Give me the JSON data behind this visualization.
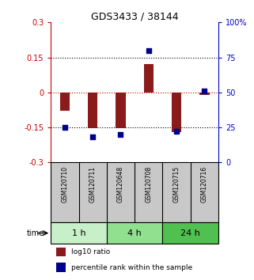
{
  "title": "GDS3433 / 38144",
  "samples": [
    "GSM120710",
    "GSM120711",
    "GSM120648",
    "GSM120708",
    "GSM120715",
    "GSM120716"
  ],
  "log10_ratio": [
    -0.08,
    -0.155,
    -0.155,
    0.12,
    -0.17,
    -0.01
  ],
  "percentile_rank": [
    25,
    18,
    20,
    80,
    22,
    51
  ],
  "ylim_left": [
    -0.3,
    0.3
  ],
  "ylim_right": [
    0,
    100
  ],
  "yticks_left": [
    -0.3,
    -0.15,
    0,
    0.15,
    0.3
  ],
  "yticks_right": [
    0,
    25,
    50,
    75,
    100
  ],
  "ytick_labels_left": [
    "-0.3",
    "-0.15",
    "0",
    "0.15",
    "0.3"
  ],
  "ytick_labels_right": [
    "0",
    "25",
    "50",
    "75",
    "100%"
  ],
  "dotted_lines": [
    -0.15,
    0.15
  ],
  "zero_line": 0,
  "bar_color": "#8B1A1A",
  "dot_color": "#00008B",
  "time_groups": [
    {
      "label": "1 h",
      "indices": [
        0,
        1
      ],
      "color": "#c8f0c8"
    },
    {
      "label": "4 h",
      "indices": [
        2,
        3
      ],
      "color": "#90e090"
    },
    {
      "label": "24 h",
      "indices": [
        4,
        5
      ],
      "color": "#50c050"
    }
  ],
  "time_label": "time",
  "legend_bar_label": "log10 ratio",
  "legend_dot_label": "percentile rank within the sample",
  "left_axis_color": "#cc0000",
  "right_axis_color": "#0000cc",
  "bar_width": 0.35,
  "dot_size": 22,
  "label_bg": "#c8c8c8",
  "fig_width": 3.21,
  "fig_height": 3.54,
  "fig_dpi": 100
}
